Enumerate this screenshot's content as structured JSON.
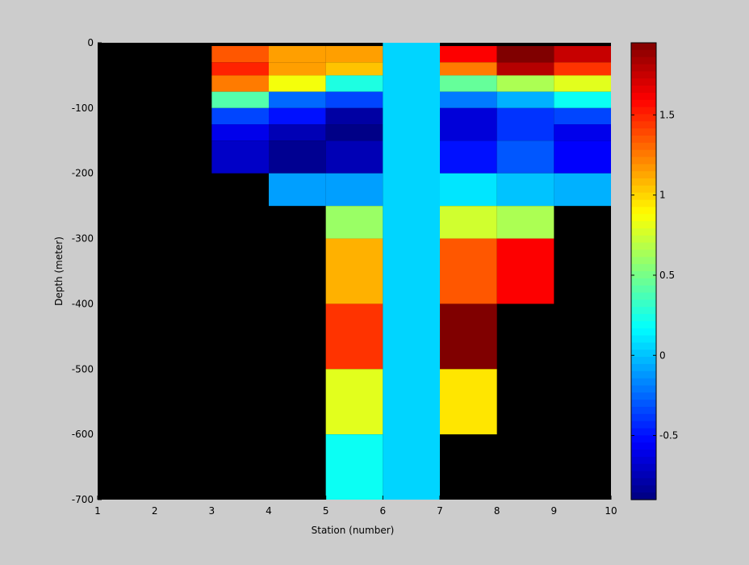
{
  "chart_data": {
    "type": "heatmap",
    "title": "",
    "xlabel": "Station (number)",
    "ylabel": "Depth (meter)",
    "xlim": [
      1,
      10
    ],
    "ylim": [
      -700,
      0
    ],
    "xticks": [
      1,
      2,
      3,
      4,
      5,
      6,
      7,
      8,
      9,
      10
    ],
    "yticks": [
      0,
      -100,
      -200,
      -300,
      -400,
      -500,
      -600,
      -700
    ],
    "colorbar": {
      "colormap": "jet",
      "clim": [
        -0.9,
        1.95
      ],
      "ticks": [
        -0.5,
        0,
        0.5,
        1,
        1.5
      ],
      "tick_labels": [
        "-0.5",
        "0",
        "0.5",
        "1",
        "1.5"
      ]
    },
    "background": "#000000",
    "cells": [
      {
        "x0": 3,
        "x1": 4,
        "y0": -5,
        "y1": -30,
        "value": 1.35
      },
      {
        "x0": 3,
        "x1": 4,
        "y0": -30,
        "y1": -50,
        "value": 1.5
      },
      {
        "x0": 3,
        "x1": 4,
        "y0": -50,
        "y1": -75,
        "value": 1.25
      },
      {
        "x0": 3,
        "x1": 4,
        "y0": -75,
        "y1": -100,
        "value": 0.4
      },
      {
        "x0": 3,
        "x1": 4,
        "y0": -100,
        "y1": -125,
        "value": -0.35
      },
      {
        "x0": 3,
        "x1": 4,
        "y0": -125,
        "y1": -150,
        "value": -0.6
      },
      {
        "x0": 3,
        "x1": 4,
        "y0": -150,
        "y1": -200,
        "value": -0.7
      },
      {
        "x0": 4,
        "x1": 5,
        "y0": -5,
        "y1": -30,
        "value": 1.15
      },
      {
        "x0": 4,
        "x1": 5,
        "y0": -30,
        "y1": -50,
        "value": 1.15
      },
      {
        "x0": 4,
        "x1": 5,
        "y0": -50,
        "y1": -75,
        "value": 0.85
      },
      {
        "x0": 4,
        "x1": 5,
        "y0": -75,
        "y1": -100,
        "value": -0.25
      },
      {
        "x0": 4,
        "x1": 5,
        "y0": -100,
        "y1": -125,
        "value": -0.5
      },
      {
        "x0": 4,
        "x1": 5,
        "y0": -125,
        "y1": -150,
        "value": -0.75
      },
      {
        "x0": 4,
        "x1": 5,
        "y0": -150,
        "y1": -200,
        "value": -0.85
      },
      {
        "x0": 4,
        "x1": 5,
        "y0": -200,
        "y1": -250,
        "value": -0.1
      },
      {
        "x0": 5,
        "x1": 6,
        "y0": -5,
        "y1": -30,
        "value": 1.15
      },
      {
        "x0": 5,
        "x1": 6,
        "y0": -30,
        "y1": -50,
        "value": 1.05
      },
      {
        "x0": 5,
        "x1": 6,
        "y0": -50,
        "y1": -75,
        "value": 0.25
      },
      {
        "x0": 5,
        "x1": 6,
        "y0": -75,
        "y1": -100,
        "value": -0.35
      },
      {
        "x0": 5,
        "x1": 6,
        "y0": -100,
        "y1": -125,
        "value": -0.8
      },
      {
        "x0": 5,
        "x1": 6,
        "y0": -125,
        "y1": -150,
        "value": -0.88
      },
      {
        "x0": 5,
        "x1": 6,
        "y0": -150,
        "y1": -200,
        "value": -0.75
      },
      {
        "x0": 5,
        "x1": 6,
        "y0": -200,
        "y1": -250,
        "value": -0.1
      },
      {
        "x0": 5,
        "x1": 6,
        "y0": -250,
        "y1": -300,
        "value": 0.6
      },
      {
        "x0": 5,
        "x1": 6,
        "y0": -300,
        "y1": -400,
        "value": 1.1
      },
      {
        "x0": 5,
        "x1": 6,
        "y0": -400,
        "y1": -500,
        "value": 1.45
      },
      {
        "x0": 5,
        "x1": 6,
        "y0": -500,
        "y1": -600,
        "value": 0.8
      },
      {
        "x0": 5,
        "x1": 6,
        "y0": -600,
        "y1": -700,
        "value": 0.2
      },
      {
        "x0": 6,
        "x1": 7,
        "y0": 0,
        "y1": -700,
        "value": 0.05
      },
      {
        "x0": 7,
        "x1": 8,
        "y0": -5,
        "y1": -30,
        "value": 1.6
      },
      {
        "x0": 7,
        "x1": 8,
        "y0": -30,
        "y1": -50,
        "value": 1.25
      },
      {
        "x0": 7,
        "x1": 8,
        "y0": -50,
        "y1": -75,
        "value": 0.45
      },
      {
        "x0": 7,
        "x1": 8,
        "y0": -75,
        "y1": -100,
        "value": -0.2
      },
      {
        "x0": 7,
        "x1": 8,
        "y0": -100,
        "y1": -150,
        "value": -0.65
      },
      {
        "x0": 7,
        "x1": 8,
        "y0": -150,
        "y1": -200,
        "value": -0.5
      },
      {
        "x0": 7,
        "x1": 8,
        "y0": -200,
        "y1": -250,
        "value": 0.1
      },
      {
        "x0": 7,
        "x1": 8,
        "y0": -250,
        "y1": -300,
        "value": 0.75
      },
      {
        "x0": 7,
        "x1": 8,
        "y0": -300,
        "y1": -400,
        "value": 1.35
      },
      {
        "x0": 7,
        "x1": 8,
        "y0": -400,
        "y1": -500,
        "value": 1.95
      },
      {
        "x0": 7,
        "x1": 8,
        "y0": -500,
        "y1": -600,
        "value": 0.95
      },
      {
        "x0": 8,
        "x1": 9,
        "y0": -5,
        "y1": -30,
        "value": 1.95
      },
      {
        "x0": 8,
        "x1": 9,
        "y0": -30,
        "y1": -50,
        "value": 1.8
      },
      {
        "x0": 8,
        "x1": 9,
        "y0": -50,
        "y1": -75,
        "value": 0.65
      },
      {
        "x0": 8,
        "x1": 9,
        "y0": -75,
        "y1": -100,
        "value": -0.05
      },
      {
        "x0": 8,
        "x1": 9,
        "y0": -100,
        "y1": -150,
        "value": -0.4
      },
      {
        "x0": 8,
        "x1": 9,
        "y0": -150,
        "y1": -200,
        "value": -0.3
      },
      {
        "x0": 8,
        "x1": 9,
        "y0": -200,
        "y1": -250,
        "value": 0.0
      },
      {
        "x0": 8,
        "x1": 9,
        "y0": -250,
        "y1": -300,
        "value": 0.65
      },
      {
        "x0": 8,
        "x1": 9,
        "y0": -300,
        "y1": -400,
        "value": 1.6
      },
      {
        "x0": 9,
        "x1": 10,
        "y0": -5,
        "y1": -30,
        "value": 1.75
      },
      {
        "x0": 9,
        "x1": 10,
        "y0": -30,
        "y1": -50,
        "value": 1.45
      },
      {
        "x0": 9,
        "x1": 10,
        "y0": -50,
        "y1": -75,
        "value": 0.8
      },
      {
        "x0": 9,
        "x1": 10,
        "y0": -75,
        "y1": -100,
        "value": 0.2
      },
      {
        "x0": 9,
        "x1": 10,
        "y0": -100,
        "y1": -125,
        "value": -0.35
      },
      {
        "x0": 9,
        "x1": 10,
        "y0": -125,
        "y1": -150,
        "value": -0.6
      },
      {
        "x0": 9,
        "x1": 10,
        "y0": -150,
        "y1": -200,
        "value": -0.55
      },
      {
        "x0": 9,
        "x1": 10,
        "y0": -200,
        "y1": -250,
        "value": -0.05
      }
    ]
  }
}
